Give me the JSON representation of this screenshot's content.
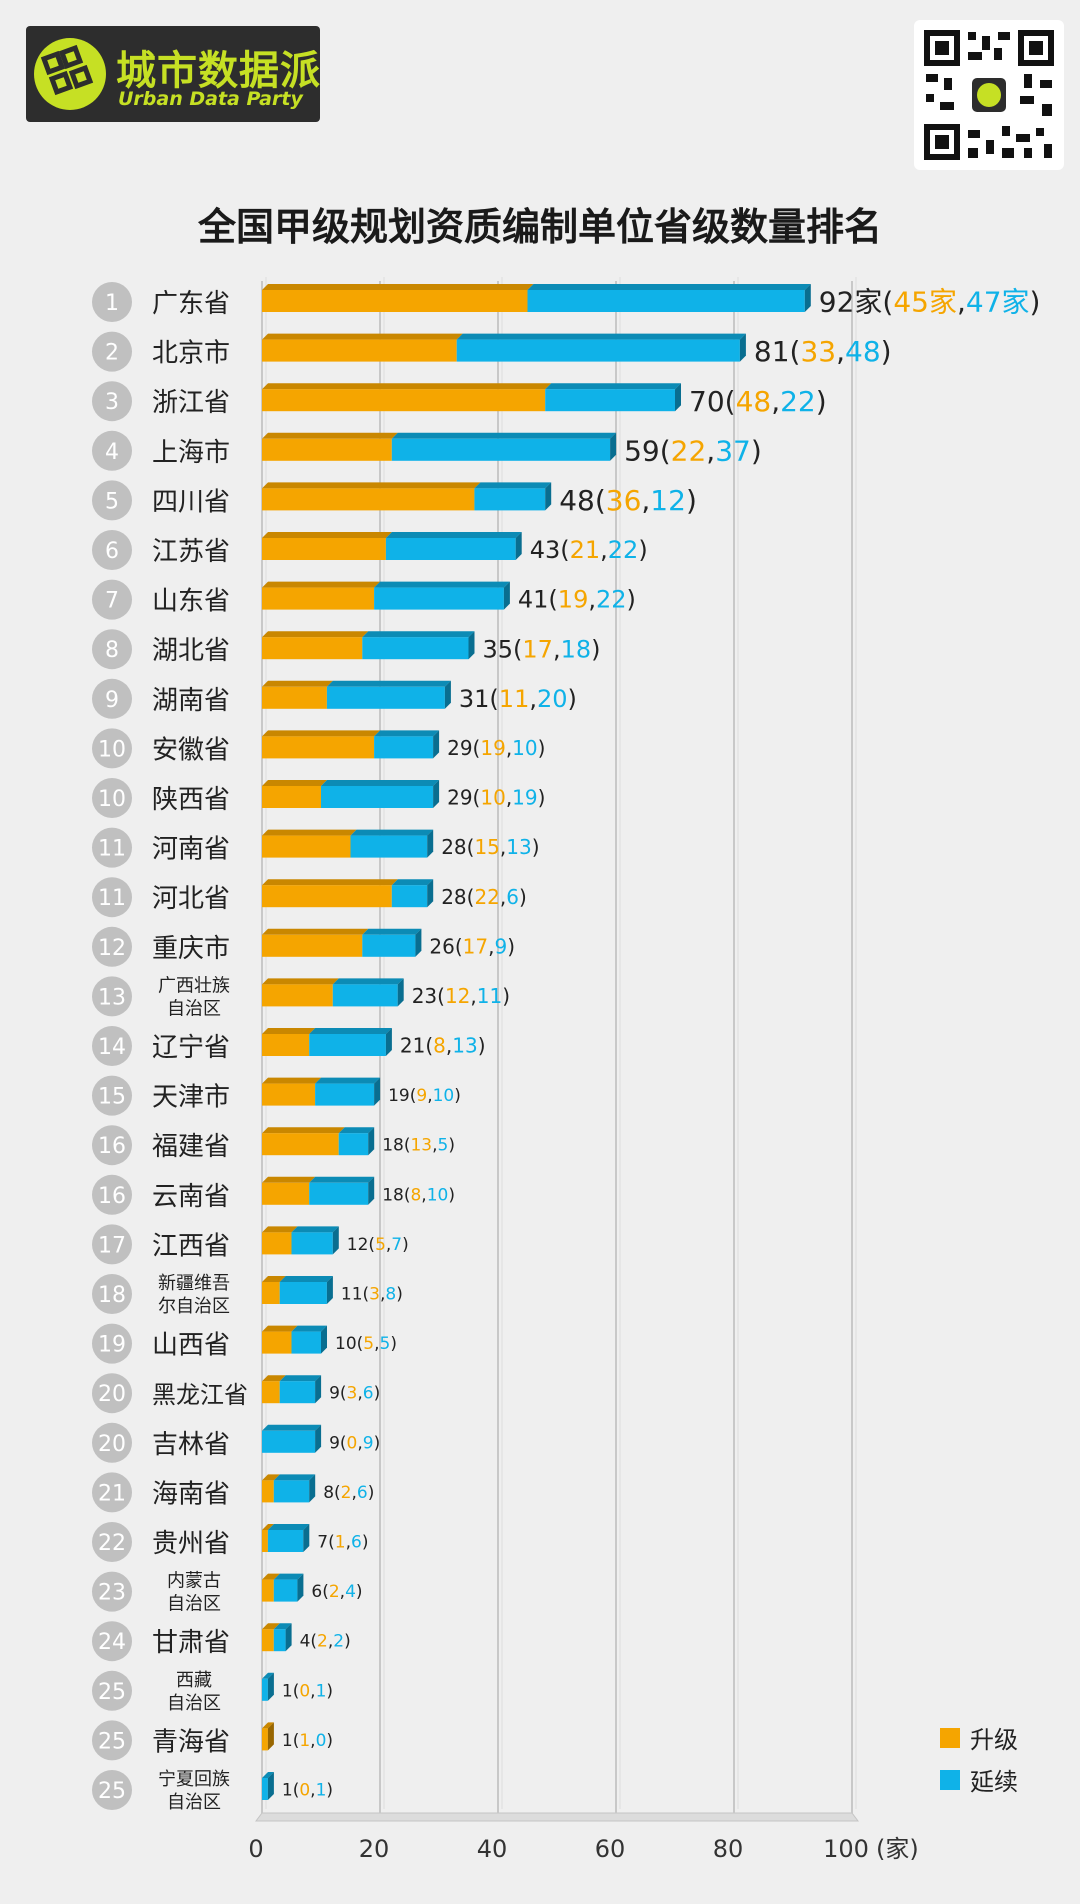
{
  "header": {
    "logo_cn": "城市数据派",
    "logo_en": "Urban Data Party",
    "title": "全国甲级规划资质编制单位省级数量排名"
  },
  "colors": {
    "upgrade": "#f5a500",
    "continue": "#0fb2e8",
    "rank_circle": "#c0c0c0"
  },
  "legend": [
    {
      "label": "升级",
      "color": "#f5a500"
    },
    {
      "label": "延续",
      "color": "#0fb2e8"
    }
  ],
  "chart_data": {
    "type": "bar",
    "orientation": "horizontal",
    "stacked": true,
    "title": "全国甲级规划资质编制单位省级数量排名",
    "xlabel": "",
    "x_unit": "(家)",
    "xlim": [
      0,
      100
    ],
    "xticks": [
      0,
      20,
      40,
      60,
      80,
      100
    ],
    "grid": true,
    "legend_position": "bottom-right",
    "series": [
      {
        "name": "升级",
        "key": "upgrade"
      },
      {
        "name": "延续",
        "key": "continue"
      }
    ],
    "rows": [
      {
        "rank": "1",
        "name": [
          "广东省"
        ],
        "total": 92,
        "upgrade": 45,
        "continue": 47,
        "suffix": "家"
      },
      {
        "rank": "2",
        "name": [
          "北京市"
        ],
        "total": 81,
        "upgrade": 33,
        "continue": 48
      },
      {
        "rank": "3",
        "name": [
          "浙江省"
        ],
        "total": 70,
        "upgrade": 48,
        "continue": 22
      },
      {
        "rank": "4",
        "name": [
          "上海市"
        ],
        "total": 59,
        "upgrade": 22,
        "continue": 37
      },
      {
        "rank": "5",
        "name": [
          "四川省"
        ],
        "total": 48,
        "upgrade": 36,
        "continue": 12
      },
      {
        "rank": "6",
        "name": [
          "江苏省"
        ],
        "total": 43,
        "upgrade": 21,
        "continue": 22
      },
      {
        "rank": "7",
        "name": [
          "山东省"
        ],
        "total": 41,
        "upgrade": 19,
        "continue": 22
      },
      {
        "rank": "8",
        "name": [
          "湖北省"
        ],
        "total": 35,
        "upgrade": 17,
        "continue": 18
      },
      {
        "rank": "9",
        "name": [
          "湖南省"
        ],
        "total": 31,
        "upgrade": 11,
        "continue": 20
      },
      {
        "rank": "10",
        "name": [
          "安徽省"
        ],
        "total": 29,
        "upgrade": 19,
        "continue": 10
      },
      {
        "rank": "10",
        "name": [
          "陕西省"
        ],
        "total": 29,
        "upgrade": 10,
        "continue": 19
      },
      {
        "rank": "11",
        "name": [
          "河南省"
        ],
        "total": 28,
        "upgrade": 15,
        "continue": 13
      },
      {
        "rank": "11",
        "name": [
          "河北省"
        ],
        "total": 28,
        "upgrade": 22,
        "continue": 6
      },
      {
        "rank": "12",
        "name": [
          "重庆市"
        ],
        "total": 26,
        "upgrade": 17,
        "continue": 9
      },
      {
        "rank": "13",
        "name": [
          "广西壮族",
          "自治区"
        ],
        "total": 23,
        "upgrade": 12,
        "continue": 11
      },
      {
        "rank": "14",
        "name": [
          "辽宁省"
        ],
        "total": 21,
        "upgrade": 8,
        "continue": 13
      },
      {
        "rank": "15",
        "name": [
          "天津市"
        ],
        "total": 19,
        "upgrade": 9,
        "continue": 10
      },
      {
        "rank": "16",
        "name": [
          "福建省"
        ],
        "total": 18,
        "upgrade": 13,
        "continue": 5
      },
      {
        "rank": "16",
        "name": [
          "云南省"
        ],
        "total": 18,
        "upgrade": 8,
        "continue": 10
      },
      {
        "rank": "17",
        "name": [
          "江西省"
        ],
        "total": 12,
        "upgrade": 5,
        "continue": 7
      },
      {
        "rank": "18",
        "name": [
          "新疆维吾",
          "尔自治区"
        ],
        "total": 11,
        "upgrade": 3,
        "continue": 8
      },
      {
        "rank": "19",
        "name": [
          "山西省"
        ],
        "total": 10,
        "upgrade": 5,
        "continue": 5
      },
      {
        "rank": "20",
        "name": [
          "黑龙江省"
        ],
        "total": 9,
        "upgrade": 3,
        "continue": 6
      },
      {
        "rank": "20",
        "name": [
          "吉林省"
        ],
        "total": 9,
        "upgrade": 0,
        "continue": 9
      },
      {
        "rank": "21",
        "name": [
          "海南省"
        ],
        "total": 8,
        "upgrade": 2,
        "continue": 6
      },
      {
        "rank": "22",
        "name": [
          "贵州省"
        ],
        "total": 7,
        "upgrade": 1,
        "continue": 6
      },
      {
        "rank": "23",
        "name": [
          "内蒙古",
          "自治区"
        ],
        "total": 6,
        "upgrade": 2,
        "continue": 4
      },
      {
        "rank": "24",
        "name": [
          "甘肃省"
        ],
        "total": 4,
        "upgrade": 2,
        "continue": 2
      },
      {
        "rank": "25",
        "name": [
          "西藏",
          "自治区"
        ],
        "total": 1,
        "upgrade": 0,
        "continue": 1
      },
      {
        "rank": "25",
        "name": [
          "青海省"
        ],
        "total": 1,
        "upgrade": 1,
        "continue": 0
      },
      {
        "rank": "25",
        "name": [
          "宁夏回族",
          "自治区"
        ],
        "total": 1,
        "upgrade": 0,
        "continue": 1
      }
    ]
  }
}
